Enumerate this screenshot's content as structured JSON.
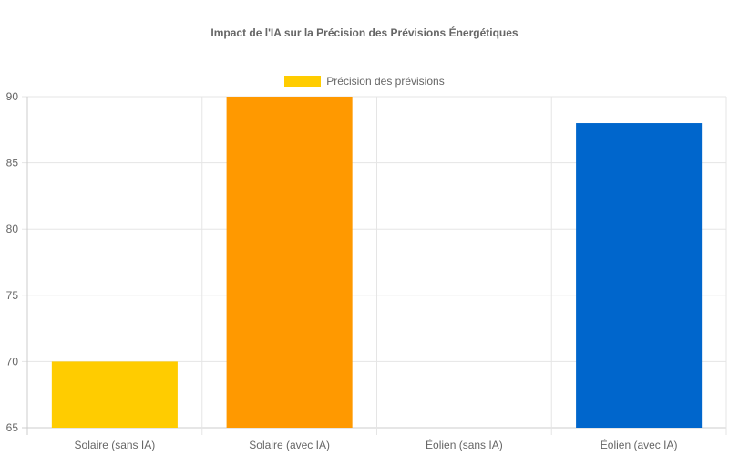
{
  "chart_data": {
    "type": "bar",
    "title": "Impact de l'IA sur la Précision des Prévisions Énergétiques",
    "categories": [
      "Solaire (sans IA)",
      "Solaire (avec IA)",
      "Éolien (sans IA)",
      "Éolien (avec IA)"
    ],
    "series": [
      {
        "name": "Précision des prévisions",
        "values": [
          70,
          90,
          65,
          88
        ]
      }
    ],
    "colors": [
      "#FFCC00",
      "#FF9900",
      "#66B2FF",
      "#0066CC"
    ],
    "legend_color": "#FFCC00",
    "ylim": [
      65,
      90
    ],
    "yticks": [
      65,
      70,
      75,
      80,
      85,
      90
    ],
    "grid": true,
    "legend": "top",
    "xlabel": "",
    "ylabel": ""
  }
}
